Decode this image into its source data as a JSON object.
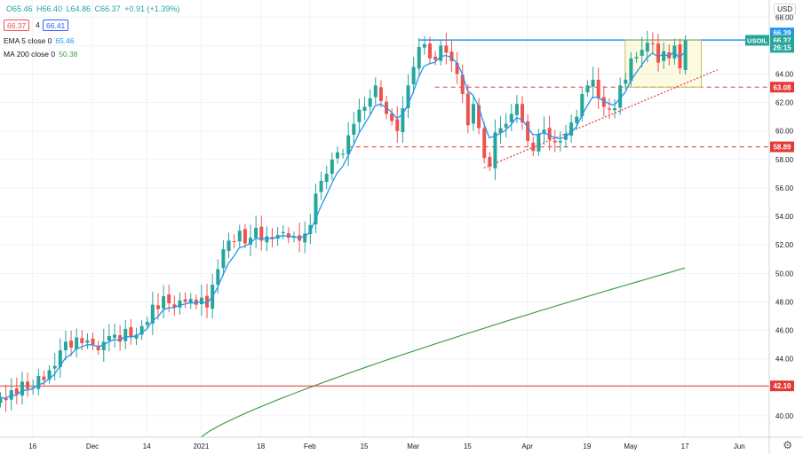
{
  "header": {
    "symbol": "",
    "open": "O65.46",
    "high": "H66.40",
    "low": "L64.86",
    "close": "C66.37",
    "change": "+0.91 (+1.39%)",
    "bid": "66.37",
    "spread": "4",
    "ask": "66.41",
    "ema_label": "EMA 5 close 0",
    "ema_value": "65.46",
    "ma_label": "MA 200 close 0",
    "ma_value": "50.38",
    "currency": "USD"
  },
  "colors": {
    "up": "#26a69a",
    "down": "#ef5350",
    "ema": "#2196f3",
    "ma": "#43a047",
    "resistance": "#2196f3",
    "level": "#e53935"
  },
  "chart_data": {
    "type": "candlestick",
    "ylim": [
      38.5,
      69.2
    ],
    "y_ticks": [
      "40.00",
      "42.00",
      "44.00",
      "46.00",
      "48.00",
      "50.00",
      "52.00",
      "54.00",
      "56.00",
      "58.00",
      "60.00",
      "62.00",
      "64.00",
      "66.00",
      "68.00"
    ],
    "x_ticks": [
      {
        "label": "16",
        "i": 6
      },
      {
        "label": "Dec",
        "i": 17
      },
      {
        "label": "14",
        "i": 27
      },
      {
        "label": "2021",
        "i": 37
      },
      {
        "label": "18",
        "i": 48
      },
      {
        "label": "Feb",
        "i": 57
      },
      {
        "label": "15",
        "i": 67
      },
      {
        "label": "Mar",
        "i": 76
      },
      {
        "label": "15",
        "i": 86
      },
      {
        "label": "Apr",
        "i": 97
      },
      {
        "label": "19",
        "i": 108
      },
      {
        "label": "May",
        "i": 116
      },
      {
        "label": "17",
        "i": 126
      },
      {
        "label": "Jun",
        "i": 136
      }
    ],
    "closes": [
      41.3,
      41.1,
      41.8,
      41.5,
      42.4,
      41.9,
      42.0,
      42.8,
      42.5,
      43.2,
      43.5,
      44.6,
      45.2,
      44.8,
      45.5,
      45.1,
      45.3,
      45.0,
      44.6,
      45.2,
      45.6,
      45.7,
      45.2,
      46.1,
      45.5,
      45.7,
      46.3,
      46.6,
      47.8,
      47.5,
      48.4,
      47.9,
      47.6,
      48.1,
      48.0,
      48.2,
      47.8,
      48.3,
      47.6,
      49.2,
      50.3,
      51.7,
      52.3,
      52.2,
      53.0,
      52.1,
      52.5,
      53.2,
      52.3,
      52.6,
      52.4,
      52.7,
      52.9,
      52.5,
      52.6,
      52.3,
      52.8,
      53.4,
      55.6,
      56.5,
      57.0,
      58.0,
      58.5,
      58.4,
      59.7,
      60.5,
      61.5,
      61.7,
      62.3,
      63.2,
      62.1,
      61.2,
      60.7,
      60.0,
      61.6,
      63.2,
      64.5,
      65.9,
      66.1,
      65.1,
      65.0,
      66.0,
      65.5,
      64.9,
      64.0,
      62.6,
      60.4,
      61.9,
      60.2,
      58.1,
      57.5,
      59.9,
      60.2,
      60.5,
      61.2,
      61.9,
      60.6,
      59.3,
      58.6,
      59.8,
      60.1,
      59.4,
      59.2,
      59.3,
      59.8,
      60.6,
      61.0,
      62.6,
      63.2,
      63.6,
      62.3,
      61.7,
      61.5,
      61.6,
      63.2,
      63.6,
      65.1,
      65.2,
      65.7,
      66.2,
      66.1,
      64.8,
      65.6,
      65.1,
      66.0,
      64.4,
      66.37
    ],
    "ema5_last": 65.46,
    "ma200": {
      "start_i": 37,
      "start_v": 38.5,
      "end_i": 126,
      "end_v": 50.38
    },
    "lines": [
      {
        "name": "resistance",
        "value": 66.39,
        "style": "solid",
        "from_i": 77
      },
      {
        "name": "level",
        "value": 63.08,
        "style": "dashed",
        "from_i": 80
      },
      {
        "name": "level",
        "value": 58.89,
        "style": "dashed",
        "from_i": 64
      },
      {
        "name": "level",
        "value": 42.1,
        "style": "solid",
        "from_i": 0
      }
    ],
    "trendline": {
      "from": {
        "i": 89,
        "v": 57.4
      },
      "to": {
        "i": 132,
        "v": 64.3
      }
    },
    "box": {
      "from_i": 115,
      "to_i": 129,
      "top": 66.39,
      "bottom": 63.08
    },
    "price_labels": [
      {
        "text": "66.39",
        "value": 66.39,
        "color": "#2196f3"
      },
      {
        "text": "66.37",
        "value": 66.37,
        "color": "#26a69a"
      },
      {
        "text": "26:15",
        "value": 66.37,
        "color": "#26a69a",
        "sub": true
      },
      {
        "text": "63.08",
        "value": 63.08,
        "color": "#e53935"
      },
      {
        "text": "58.89",
        "value": 58.89,
        "color": "#e53935"
      },
      {
        "text": "42.10",
        "value": 42.1,
        "color": "#e53935"
      }
    ],
    "symbol_tag": "USOIL"
  }
}
